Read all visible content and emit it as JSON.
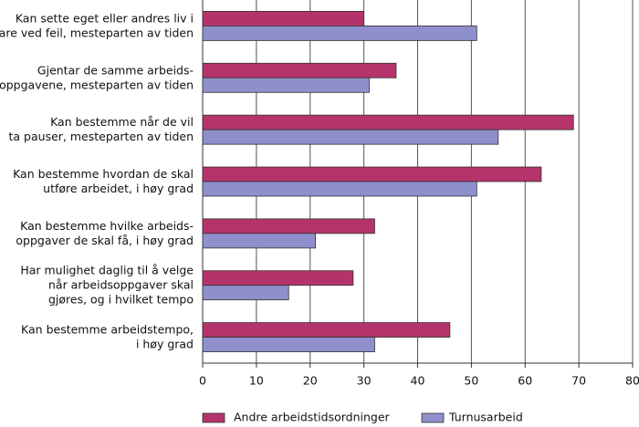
{
  "chart_data": {
    "type": "hbar",
    "categories": [
      "Kan sette eget eller andres liv i\nfare ved feil, mesteparten av tiden",
      "Gjentar de samme arbeids-\noppgavene, mesteparten av tiden",
      "Kan bestemme når de vil\nta pauser, mesteparten av tiden",
      "Kan bestemme hvordan de skal\nutføre arbeidet, i høy grad",
      "Kan bestemme hvilke arbeids-\noppgaver de skal få, i høy grad",
      "Har mulighet daglig til å velge\nnår arbeidsoppgaver skal\ngjøres, og i hvilket tempo",
      "Kan bestemme arbeidstempo,\ni høy grad"
    ],
    "series": [
      {
        "name": "Andre arbeidstidsordninger",
        "color": "#b5336b",
        "values": [
          30,
          36,
          69,
          63,
          32,
          28,
          46
        ]
      },
      {
        "name": "Turnusarbeid",
        "color": "#8f8fcc",
        "values": [
          51,
          31,
          55,
          51,
          21,
          16,
          32
        ]
      }
    ],
    "xlim": [
      0,
      80
    ],
    "xticks": [
      0,
      10,
      20,
      30,
      40,
      50,
      60,
      70,
      80
    ],
    "grid": true
  }
}
